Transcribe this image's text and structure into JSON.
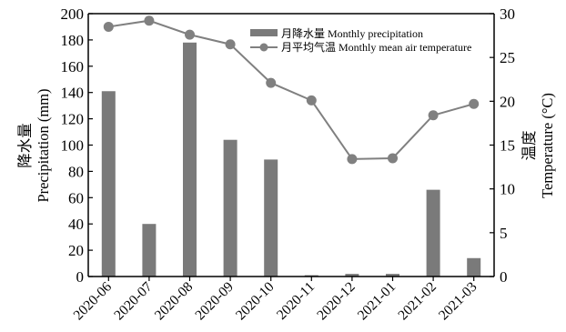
{
  "chart_data": {
    "type": "bar",
    "categories": [
      "2020-06",
      "2020-07",
      "2020-08",
      "2020-09",
      "2020-10",
      "2020-11",
      "2020-12",
      "2021-01",
      "2021-02",
      "2021-03"
    ],
    "series": [
      {
        "name": "月降水量 Monthly precipitation",
        "type": "bar",
        "axis": "left",
        "color": "#7a7a7a",
        "values": [
          141,
          40,
          178,
          104,
          89,
          1,
          2,
          2,
          66,
          14
        ]
      },
      {
        "name": "月平均气温 Monthly mean air temperature",
        "type": "line",
        "axis": "right",
        "color": "#808080",
        "values": [
          28.5,
          29.2,
          27.6,
          26.5,
          22.1,
          20.1,
          13.4,
          13.5,
          18.4,
          19.7
        ]
      }
    ],
    "ylabel_left": {
      "chinese": "降水量",
      "english": "Precipitation (mm)"
    },
    "ylabel_right": {
      "chinese": "温度",
      "english": "Temperature (°C)"
    },
    "ylim_left": [
      0,
      200
    ],
    "yticks_left": [
      0,
      20,
      40,
      60,
      80,
      100,
      120,
      140,
      160,
      180,
      200
    ],
    "ylim_right": [
      0,
      30
    ],
    "yticks_right": [
      0,
      5,
      10,
      15,
      20,
      25,
      30
    ],
    "grid": false,
    "legend_position": "top-right"
  }
}
